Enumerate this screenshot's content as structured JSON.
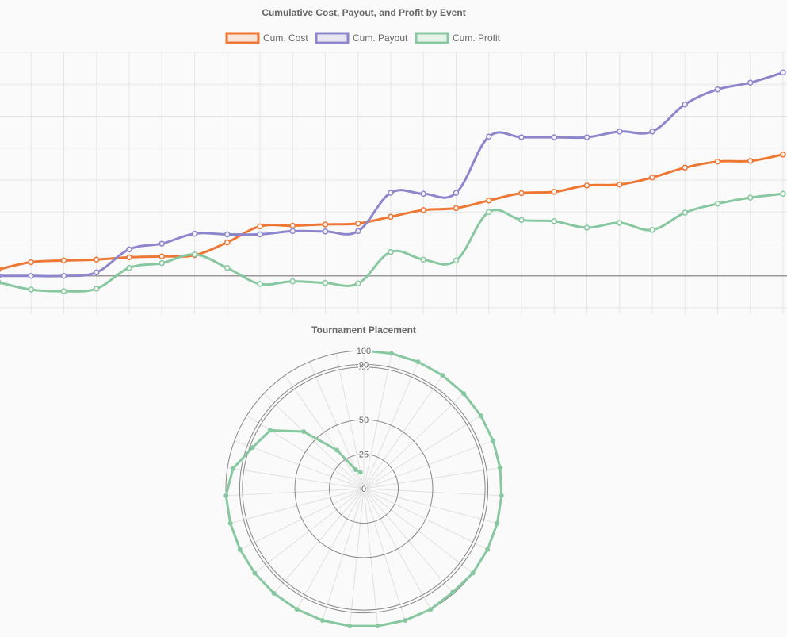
{
  "chart_data": [
    {
      "type": "line",
      "title": "Cumulative Cost, Payout, and Profit by Event",
      "legend_position": "top",
      "grid": true,
      "zero_line": true,
      "ylim": [
        -100,
        700
      ],
      "x_count": 25,
      "series": [
        {
          "name": "Cum. Cost",
          "color": "#ee7733",
          "values": [
            20,
            43,
            48,
            51,
            58,
            61,
            65,
            105,
            155,
            157,
            161,
            164,
            185,
            206,
            212,
            236,
            259,
            263,
            283,
            286,
            308,
            339,
            358,
            360,
            380
          ]
        },
        {
          "name": "Cum. Payout",
          "color": "#8e86cc",
          "values": [
            0,
            0,
            0,
            11,
            83,
            101,
            132,
            130,
            130,
            140,
            139,
            140,
            260,
            257,
            260,
            436,
            434,
            434,
            434,
            452,
            452,
            537,
            584,
            605,
            637
          ]
        },
        {
          "name": "Cum. Profit",
          "color": "#88c8a0",
          "values": [
            -20,
            -43,
            -48,
            -40,
            25,
            40,
            67,
            25,
            -25,
            -17,
            -22,
            -24,
            75,
            51,
            48,
            200,
            175,
            171,
            151,
            166,
            144,
            198,
            226,
            245,
            257
          ]
        }
      ]
    },
    {
      "type": "radar",
      "title": "Tournament Placement",
      "r_ticks": [
        0,
        25,
        50,
        88,
        90,
        100
      ],
      "r_max": 100,
      "series": [
        {
          "name": "Placement",
          "color": "#88c8a0",
          "values": [
            100,
            100,
            100,
            100,
            100,
            100,
            100,
            100,
            100,
            100,
            100,
            100,
            99,
            100,
            100,
            100,
            100,
            100,
            100,
            100,
            100,
            100,
            100,
            100,
            96,
            86,
            80,
            60,
            34,
            15,
            12
          ]
        }
      ]
    }
  ]
}
